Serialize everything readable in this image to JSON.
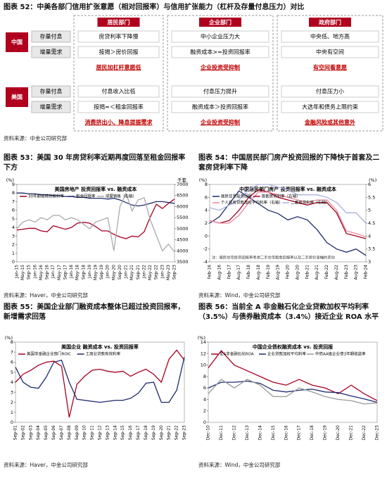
{
  "fig52": {
    "title": "图表 52：中美各部门信用扩张意愿（相对回报率）与信用扩张能力（杠杆及存量付息压力）对比",
    "columns": [
      "居民部门",
      "企业部门",
      "政府部门"
    ],
    "china": {
      "label": "中国",
      "rows": [
        {
          "label": "存量付息",
          "cells": [
            "房贷利率下降慢",
            "中小企业压力大",
            "中央低、地方高"
          ]
        },
        {
          "label": "增量需求",
          "cells": [
            "按揭＞房价回报",
            "融资成本>=投资回报率",
            "中央有空间"
          ]
        }
      ],
      "conclusions": [
        "居民加杠杆意愿低",
        "企业投资受抑制",
        "有空间看意愿"
      ]
    },
    "us": {
      "label": "美国",
      "rows": [
        {
          "label": "存量付息",
          "cells": [
            "付息收入比低",
            "付息压力提升",
            "付息压力小"
          ]
        },
        {
          "label": "增量需求",
          "cells": [
            "按揭=＜租金回报率",
            "融资成本＞投资回报率",
            "大选年和债务上限约束"
          ]
        }
      ],
      "conclusions": [
        "消费挤出小、降息提振需求",
        "企业投资受抑制",
        "金融风险或其他意外"
      ]
    },
    "source": "资料来源：中金公司研究部"
  },
  "chart_data": [
    {
      "type": "line",
      "title": "图表 53：美国 30 年房贷利率近期再度回落至租金回报率下方",
      "inner_title": "美国房地产 投资回报率 vs. 融资成本",
      "y_unit": "(%)",
      "y2_unit": "千套",
      "categories": [
        "Jan-15",
        "May-15",
        "Sep-15",
        "Jan-16",
        "May-16",
        "Sep-16",
        "Jan-17",
        "May-17",
        "Sep-17",
        "Jan-18",
        "May-18",
        "Sep-18",
        "Jan-19",
        "May-19",
        "Sep-19",
        "Jan-20",
        "May-20",
        "Sep-20",
        "Jan-21",
        "May-21",
        "Sep-21",
        "Jan-22",
        "May-22",
        "Sep-22",
        "Jan-23",
        "May-23",
        "Sep-23"
      ],
      "series": [
        {
          "name": "30年期按揭贷款利率",
          "color": "#a50021",
          "values": [
            3.7,
            3.8,
            3.9,
            3.9,
            3.6,
            3.5,
            4.2,
            4.0,
            3.8,
            4.0,
            4.5,
            4.6,
            4.5,
            4.1,
            3.6,
            3.6,
            3.2,
            2.9,
            2.7,
            3.0,
            2.9,
            3.5,
            5.2,
            6.7,
            6.2,
            6.8,
            7.3
          ]
        },
        {
          "name": "租金回报率",
          "color": "#1f2a6e",
          "values": [
            8.0,
            8.0,
            7.9,
            7.9,
            7.8,
            7.8,
            7.7,
            7.7,
            7.6,
            7.6,
            7.5,
            7.5,
            7.4,
            7.4,
            7.4,
            7.3,
            7.4,
            7.2,
            6.9,
            6.6,
            6.5,
            6.6,
            6.8,
            7.0,
            7.0,
            6.9,
            6.8
          ]
        },
        {
          "name": "成屋销售（右轴）",
          "color": "#aaaaaa",
          "axis": "y2",
          "values": [
            5000,
            5300,
            5400,
            5300,
            5500,
            5400,
            5600,
            5600,
            5400,
            5500,
            5400,
            5200,
            5000,
            5300,
            5400,
            5500,
            4000,
            6000,
            6600,
            5800,
            6300,
            6400,
            5400,
            4700,
            4000,
            4300,
            3950
          ]
        }
      ],
      "ylim": [
        0,
        9
      ],
      "yticks": [
        0,
        1,
        2,
        3,
        4,
        5,
        6,
        7,
        8,
        9
      ],
      "y2lim": [
        3500,
        7000
      ],
      "y2ticks": [
        3500,
        4000,
        4500,
        5000,
        5500,
        6000,
        6500,
        7000
      ],
      "source": "资料来源：Haver，中金公司研究部"
    },
    {
      "type": "line",
      "title": "图表 54：中国居民部门房产投资回报的下降快于首套及二套房贷利率下降",
      "inner_title": "中国居民部门房产 投资回报率 vs. 融资成本",
      "y_unit": "(%)",
      "y2_unit": "(%)",
      "note": "注：居民住宅投资回报率考虑二手住宅租金回报率以及二手房价涨幅的变动",
      "categories": [
        "Feb-16",
        "Aug-16",
        "Feb-17",
        "Aug-17",
        "Feb-18",
        "Aug-18",
        "Feb-19",
        "Aug-19",
        "Feb-20",
        "Aug-20",
        "Feb-21",
        "Aug-21",
        "Feb-22",
        "Aug-22",
        "Feb-23",
        "Aug-23",
        "Feb-24"
      ],
      "series": [
        {
          "name": "居民住宅投资回报",
          "color": "#1f2a6e",
          "values": [
            2,
            3,
            5,
            7,
            6,
            5,
            4,
            3.5,
            2.5,
            3,
            2.5,
            1,
            -1,
            -2,
            -2.5,
            -2,
            -3
          ]
        },
        {
          "name": "首套房贷利率（右轴）",
          "color": "#a50021",
          "axis": "y2",
          "values": [
            4.6,
            4.5,
            4.6,
            5.0,
            5.5,
            5.8,
            5.7,
            5.5,
            5.4,
            5.3,
            5.2,
            5.3,
            5.3,
            4.9,
            4.1,
            4.0,
            3.9
          ]
        },
        {
          "name": "个人住房贷款加权平均利率（右轴）",
          "color": "#e98aa0",
          "axis": "y2",
          "values": [
            4.6,
            4.5,
            4.5,
            4.8,
            5.3,
            5.7,
            5.7,
            5.6,
            5.5,
            5.4,
            5.3,
            5.4,
            5.4,
            5.0,
            4.2,
            4.1,
            3.97
          ]
        },
        {
          "name": "二套房贷利率（右轴）",
          "color": "#aab0e0",
          "axis": "y2",
          "values": [
            5.1,
            5.0,
            5.2,
            5.4,
            5.8,
            6.0,
            6.0,
            5.9,
            5.8,
            5.6,
            5.6,
            5.6,
            5.5,
            5.3,
            4.9,
            4.9,
            4.5
          ]
        }
      ],
      "ylim": [
        -4,
        8
      ],
      "yticks": [
        -4,
        -2,
        0,
        2,
        4,
        6,
        8
      ],
      "y2lim": [
        3,
        6
      ],
      "y2ticks": [
        3,
        3.5,
        4,
        4.5,
        5,
        5.5,
        6
      ],
      "source": "资料来源：Wind，中金公司研究部"
    },
    {
      "type": "line",
      "title": "图表 55：美国企业部门融资成本整体已超过投资回报率，新增需求回落",
      "inner_title": "美国企业 融资成本 vs. 投资回报率",
      "y_unit": "(%)",
      "categories": [
        "Sep-01",
        "Sep-02",
        "Sep-03",
        "Sep-04",
        "Sep-05",
        "Sep-06",
        "Sep-07",
        "Sep-08",
        "Sep-09",
        "Sep-10",
        "Sep-11",
        "Sep-12",
        "Sep-13",
        "Sep-14",
        "Sep-15",
        "Sep-16",
        "Sep-17",
        "Sep-18",
        "Sep-19",
        "Sep-20",
        "Sep-21",
        "Sep-22",
        "Sep-23"
      ],
      "series": [
        {
          "name": "美国非金融企业部门ROIC",
          "color": "#a50021",
          "values": [
            4.0,
            4.8,
            5.2,
            5.7,
            6.0,
            6.1,
            5.6,
            0.5,
            3.8,
            4.6,
            5.2,
            5.3,
            5.1,
            5.0,
            5.1,
            4.6,
            5.0,
            5.3,
            4.8,
            4.0,
            6.3,
            7.2,
            6.2
          ]
        },
        {
          "name": "工商业贷款有效利率",
          "color": "#1f2a6e",
          "values": [
            5.5,
            4.0,
            3.5,
            3.4,
            4.5,
            6.0,
            6.2,
            4.0,
            2.3,
            2.2,
            2.1,
            2.0,
            2.1,
            2.2,
            2.2,
            2.4,
            2.9,
            3.9,
            4.0,
            2.0,
            2.0,
            3.2,
            6.5
          ]
        }
      ],
      "ylim": [
        0,
        8
      ],
      "yticks": [
        0,
        1,
        2,
        3,
        4,
        5,
        6,
        7,
        8
      ],
      "source": "资料来源：Haver，中金公司研究部"
    },
    {
      "type": "line",
      "title": "图表 56：当前全 A 非金融石化企业贷款加权平均利率（3.5%）与债券融资成本（3.4%）接近企业 ROA 水平",
      "inner_title": "中国企业债权融资成本 vs. 投资回报",
      "y_unit": "(%)",
      "categories": [
        "Dec-10",
        "Dec-11",
        "Dec-12",
        "Dec-13",
        "Dec-14",
        "Dec-15",
        "Dec-16",
        "Dec-17",
        "Dec-18",
        "Dec-19",
        "Dec-20",
        "Dec-21",
        "Dec-22",
        "Dec-23"
      ],
      "series": [
        {
          "name": "全A非金融石化ROA",
          "color": "#a50021",
          "values": [
            9.5,
            12.5,
            10.0,
            9.0,
            8.0,
            7.0,
            6.5,
            7.5,
            6.5,
            6.0,
            5.0,
            6.5,
            5.0,
            3.8
          ]
        },
        {
          "name": "企业贷款加权平均利率",
          "color": "#1f2a6e",
          "values": [
            6.0,
            7.0,
            7.0,
            7.2,
            6.8,
            5.6,
            5.3,
            5.6,
            5.8,
            5.3,
            5.2,
            4.6,
            4.1,
            3.5
          ]
        },
        {
          "name": "中债AA级企业债3年期收益率",
          "color": "#999999",
          "values": [
            5.0,
            7.5,
            6.0,
            7.5,
            6.5,
            4.5,
            4.5,
            6.0,
            5.3,
            4.5,
            4.0,
            3.8,
            3.2,
            3.4
          ]
        }
      ],
      "ylim": [
        0,
        14
      ],
      "yticks": [
        0,
        2,
        4,
        6,
        8,
        10,
        12,
        14
      ],
      "source": "资料来源：Wind，中金公司研究部"
    }
  ]
}
